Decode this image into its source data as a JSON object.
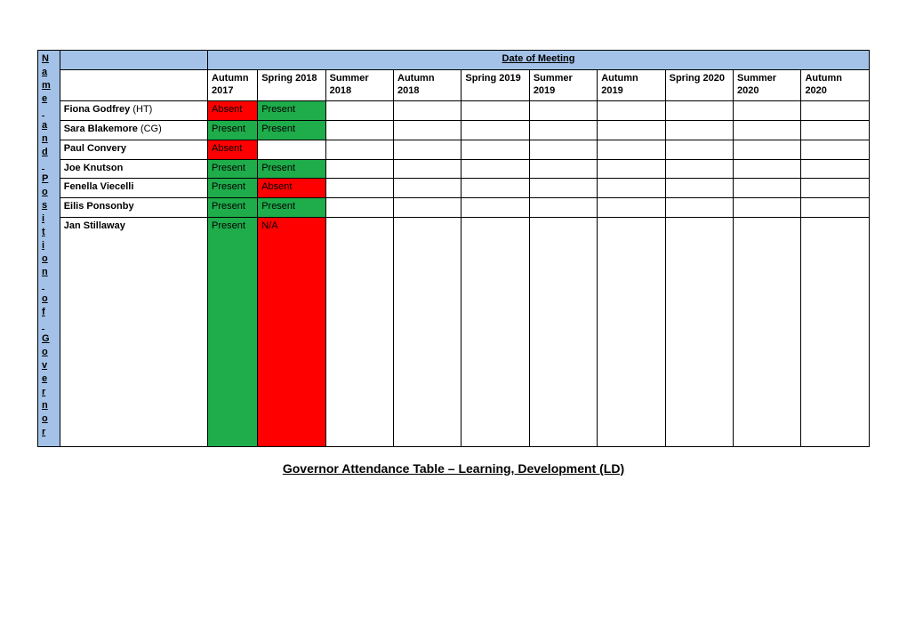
{
  "colors": {
    "header_bg": "#a4c2e8",
    "present_bg": "#1fac4b",
    "absent_bg": "#ff0000",
    "border": "#000000",
    "page_bg": "#ffffff"
  },
  "sideHeader": "Name and Position of Governor",
  "dateHeader": "Date of Meeting",
  "columns": [
    "Autumn 2017",
    "Spring 2018",
    "Summer 2018",
    "Autumn 2018",
    "Spring 2019",
    "Summer 2019",
    "Autumn 2019",
    "Spring 2020",
    "Summer 2020",
    "Autumn 2020"
  ],
  "rows": [
    {
      "name": "Fiona Godfrey",
      "note": "(HT)",
      "cells": [
        "Absent",
        "Present",
        "",
        "",
        "",
        "",
        "",
        "",
        "",
        ""
      ]
    },
    {
      "name": "Sara Blakemore",
      "note": "(CG)",
      "cells": [
        "Present",
        "Present",
        "",
        "",
        "",
        "",
        "",
        "",
        "",
        ""
      ]
    },
    {
      "name": "Paul Convery",
      "note": "",
      "cells": [
        "Absent",
        "",
        "",
        "",
        "",
        "",
        "",
        "",
        "",
        ""
      ]
    },
    {
      "name": "Joe Knutson",
      "note": "",
      "cells": [
        "Present",
        "Present",
        "",
        "",
        "",
        "",
        "",
        "",
        "",
        ""
      ]
    },
    {
      "name": "Fenella Viecelli",
      "note": "",
      "cells": [
        "Present",
        "Absent",
        "",
        "",
        "",
        "",
        "",
        "",
        "",
        ""
      ]
    },
    {
      "name": "Eilis Ponsonby",
      "note": "",
      "cells": [
        "Present",
        "Present",
        "",
        "",
        "",
        "",
        "",
        "",
        "",
        ""
      ]
    },
    {
      "name": "Jan Stillaway",
      "note": "",
      "cells": [
        "Present",
        "N/A",
        "",
        "",
        "",
        "",
        "",
        "",
        "",
        ""
      ]
    }
  ],
  "lastRowTallHeight": 250,
  "footerTitle": "Governor Attendance Table – Learning, Development (LD)",
  "cellStatusColors": {
    "Present": "present",
    "Absent": "absent",
    "N/A": "absent",
    "": "blank"
  }
}
